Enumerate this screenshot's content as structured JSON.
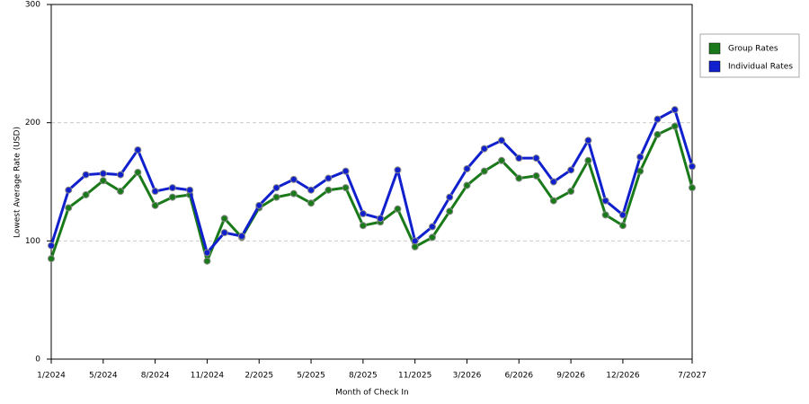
{
  "chart_data": {
    "type": "line",
    "x_label": "Month of Check In",
    "y_label": "Lowest Average Rate (USD)",
    "categories": [
      "1/2024",
      null,
      null,
      "5/2024",
      null,
      null,
      "8/2024",
      null,
      null,
      "11/2024",
      null,
      null,
      "2/2025",
      null,
      null,
      "5/2025",
      null,
      null,
      "8/2025",
      null,
      null,
      "11/2025",
      null,
      null,
      "3/2026",
      null,
      null,
      "6/2026",
      null,
      null,
      "9/2026",
      null,
      null,
      "12/2026",
      null,
      null,
      null,
      "7/2027"
    ],
    "series": [
      {
        "name": "Group Rates",
        "color": "#1a7a1a",
        "values": [
          85,
          128,
          139,
          151,
          142,
          158,
          130,
          137,
          139,
          83,
          119,
          103,
          128,
          137,
          140,
          132,
          143,
          145,
          113,
          116,
          127,
          95,
          103,
          125,
          147,
          159,
          168,
          153,
          155,
          134,
          142,
          168,
          122,
          113,
          159,
          190,
          197,
          145
        ]
      },
      {
        "name": "Individual Rates",
        "color": "#1020cc",
        "values": [
          96,
          143,
          156,
          157,
          156,
          177,
          142,
          145,
          143,
          90,
          107,
          104,
          130,
          145,
          152,
          143,
          153,
          159,
          123,
          119,
          160,
          100,
          112,
          137,
          161,
          178,
          185,
          170,
          170,
          150,
          160,
          185,
          134,
          122,
          171,
          203,
          211,
          163
        ]
      }
    ],
    "ylim": [
      0,
      300
    ],
    "yticks": [
      0,
      100,
      200,
      300
    ],
    "grid": true,
    "legend": "right"
  }
}
